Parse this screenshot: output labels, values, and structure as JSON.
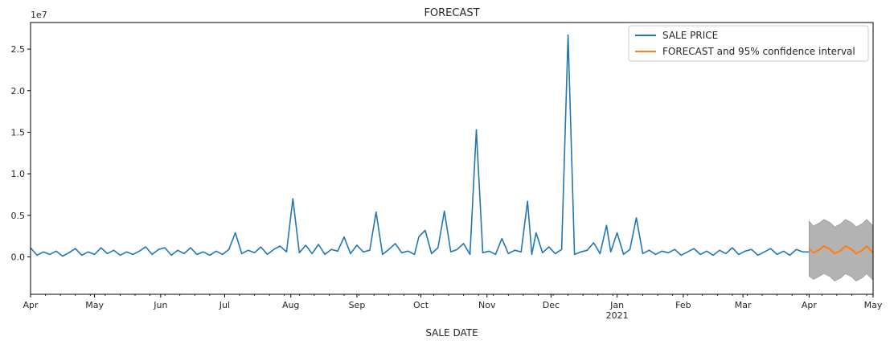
{
  "chart_data": {
    "type": "line",
    "title": "FORECAST",
    "xlabel": "SALE DATE",
    "ylabel": "",
    "y_scale_label": "1e7",
    "ylim": [
      -4500000,
      28200000
    ],
    "yticks": [
      0,
      5000000,
      10000000,
      15000000,
      20000000,
      25000000
    ],
    "ytick_labels": [
      "0.0",
      "0.5",
      "1.0",
      "1.5",
      "2.0",
      "2.5"
    ],
    "xlim": [
      "2020-04-01",
      "2021-05-01"
    ],
    "xticks": [
      {
        "date": "2020-04-01",
        "label": "Apr"
      },
      {
        "date": "2020-05-01",
        "label": "May"
      },
      {
        "date": "2020-06-01",
        "label": "Jun"
      },
      {
        "date": "2020-07-01",
        "label": "Jul"
      },
      {
        "date": "2020-08-01",
        "label": "Aug"
      },
      {
        "date": "2020-09-01",
        "label": "Sep"
      },
      {
        "date": "2020-10-01",
        "label": "Oct"
      },
      {
        "date": "2020-11-01",
        "label": "Nov"
      },
      {
        "date": "2020-12-01",
        "label": "Dec"
      },
      {
        "date": "2021-01-01",
        "label": "Jan",
        "sublabel": "2021"
      },
      {
        "date": "2021-02-01",
        "label": "Feb"
      },
      {
        "date": "2021-03-01",
        "label": "Mar"
      },
      {
        "date": "2021-04-01",
        "label": "Apr"
      },
      {
        "date": "2021-05-01",
        "label": "May"
      }
    ],
    "legend_position": "top-right",
    "series": [
      {
        "name": "SALE PRICE",
        "color": "#1f77b4",
        "points": [
          [
            "2020-04-01",
            1100000
          ],
          [
            "2020-04-04",
            200000
          ],
          [
            "2020-04-07",
            600000
          ],
          [
            "2020-04-10",
            300000
          ],
          [
            "2020-04-13",
            700000
          ],
          [
            "2020-04-16",
            100000
          ],
          [
            "2020-04-19",
            500000
          ],
          [
            "2020-04-22",
            1000000
          ],
          [
            "2020-04-25",
            200000
          ],
          [
            "2020-04-28",
            600000
          ],
          [
            "2020-05-01",
            300000
          ],
          [
            "2020-05-04",
            1100000
          ],
          [
            "2020-05-07",
            400000
          ],
          [
            "2020-05-10",
            800000
          ],
          [
            "2020-05-13",
            200000
          ],
          [
            "2020-05-16",
            600000
          ],
          [
            "2020-05-19",
            300000
          ],
          [
            "2020-05-22",
            700000
          ],
          [
            "2020-05-25",
            1200000
          ],
          [
            "2020-05-28",
            300000
          ],
          [
            "2020-05-31",
            900000
          ],
          [
            "2020-06-03",
            1100000
          ],
          [
            "2020-06-06",
            200000
          ],
          [
            "2020-06-09",
            800000
          ],
          [
            "2020-06-12",
            400000
          ],
          [
            "2020-06-15",
            1100000
          ],
          [
            "2020-06-18",
            300000
          ],
          [
            "2020-06-21",
            600000
          ],
          [
            "2020-06-24",
            200000
          ],
          [
            "2020-06-27",
            700000
          ],
          [
            "2020-06-30",
            300000
          ],
          [
            "2020-07-03",
            900000
          ],
          [
            "2020-07-06",
            2900000
          ],
          [
            "2020-07-09",
            400000
          ],
          [
            "2020-07-12",
            800000
          ],
          [
            "2020-07-15",
            500000
          ],
          [
            "2020-07-18",
            1200000
          ],
          [
            "2020-07-21",
            300000
          ],
          [
            "2020-07-24",
            900000
          ],
          [
            "2020-07-27",
            1300000
          ],
          [
            "2020-07-30",
            600000
          ],
          [
            "2020-08-02",
            7000000
          ],
          [
            "2020-08-05",
            500000
          ],
          [
            "2020-08-08",
            1400000
          ],
          [
            "2020-08-11",
            400000
          ],
          [
            "2020-08-14",
            1500000
          ],
          [
            "2020-08-17",
            300000
          ],
          [
            "2020-08-20",
            900000
          ],
          [
            "2020-08-23",
            700000
          ],
          [
            "2020-08-26",
            2400000
          ],
          [
            "2020-08-29",
            400000
          ],
          [
            "2020-09-01",
            1400000
          ],
          [
            "2020-09-04",
            600000
          ],
          [
            "2020-09-07",
            800000
          ],
          [
            "2020-09-10",
            5400000
          ],
          [
            "2020-09-13",
            300000
          ],
          [
            "2020-09-16",
            900000
          ],
          [
            "2020-09-19",
            1600000
          ],
          [
            "2020-09-22",
            500000
          ],
          [
            "2020-09-25",
            700000
          ],
          [
            "2020-09-28",
            300000
          ],
          [
            "2020-09-30",
            2400000
          ],
          [
            "2020-10-03",
            3200000
          ],
          [
            "2020-10-06",
            400000
          ],
          [
            "2020-10-09",
            1100000
          ],
          [
            "2020-10-12",
            5500000
          ],
          [
            "2020-10-15",
            600000
          ],
          [
            "2020-10-18",
            900000
          ],
          [
            "2020-10-21",
            1600000
          ],
          [
            "2020-10-24",
            300000
          ],
          [
            "2020-10-27",
            15300000
          ],
          [
            "2020-10-30",
            500000
          ],
          [
            "2020-11-02",
            700000
          ],
          [
            "2020-11-05",
            300000
          ],
          [
            "2020-11-08",
            2200000
          ],
          [
            "2020-11-11",
            400000
          ],
          [
            "2020-11-14",
            800000
          ],
          [
            "2020-11-17",
            600000
          ],
          [
            "2020-11-20",
            6700000
          ],
          [
            "2020-11-22",
            300000
          ],
          [
            "2020-11-24",
            2900000
          ],
          [
            "2020-11-27",
            500000
          ],
          [
            "2020-11-30",
            1200000
          ],
          [
            "2020-12-03",
            400000
          ],
          [
            "2020-12-06",
            900000
          ],
          [
            "2020-12-09",
            26700000
          ],
          [
            "2020-12-12",
            300000
          ],
          [
            "2020-12-15",
            600000
          ],
          [
            "2020-12-18",
            800000
          ],
          [
            "2020-12-21",
            1700000
          ],
          [
            "2020-12-24",
            400000
          ],
          [
            "2020-12-27",
            3800000
          ],
          [
            "2020-12-29",
            600000
          ],
          [
            "2021-01-01",
            2900000
          ],
          [
            "2021-01-04",
            300000
          ],
          [
            "2021-01-07",
            900000
          ],
          [
            "2021-01-10",
            4700000
          ],
          [
            "2021-01-13",
            400000
          ],
          [
            "2021-01-16",
            800000
          ],
          [
            "2021-01-19",
            300000
          ],
          [
            "2021-01-22",
            700000
          ],
          [
            "2021-01-25",
            500000
          ],
          [
            "2021-01-28",
            900000
          ],
          [
            "2021-01-31",
            200000
          ],
          [
            "2021-02-03",
            600000
          ],
          [
            "2021-02-06",
            1000000
          ],
          [
            "2021-02-09",
            300000
          ],
          [
            "2021-02-12",
            700000
          ],
          [
            "2021-02-15",
            200000
          ],
          [
            "2021-02-18",
            800000
          ],
          [
            "2021-02-21",
            400000
          ],
          [
            "2021-02-24",
            1100000
          ],
          [
            "2021-02-27",
            300000
          ],
          [
            "2021-03-02",
            700000
          ],
          [
            "2021-03-05",
            900000
          ],
          [
            "2021-03-08",
            200000
          ],
          [
            "2021-03-11",
            600000
          ],
          [
            "2021-03-14",
            1000000
          ],
          [
            "2021-03-17",
            300000
          ],
          [
            "2021-03-20",
            700000
          ],
          [
            "2021-03-23",
            200000
          ],
          [
            "2021-03-26",
            900000
          ],
          [
            "2021-03-29",
            600000
          ],
          [
            "2021-04-01",
            600000
          ]
        ]
      },
      {
        "name": "FORECAST and 95% confidence interval",
        "color": "#ff7f0e",
        "band_color": "#b3b3b3",
        "points": [
          [
            "2021-04-01",
            1000000,
            -2300000,
            4300000
          ],
          [
            "2021-04-03",
            500000,
            -2700000,
            3700000
          ],
          [
            "2021-04-06",
            900000,
            -2300000,
            4100000
          ],
          [
            "2021-04-08",
            1300000,
            -2000000,
            4500000
          ],
          [
            "2021-04-11",
            900000,
            -2400000,
            4100000
          ],
          [
            "2021-04-13",
            400000,
            -2900000,
            3600000
          ],
          [
            "2021-04-16",
            800000,
            -2500000,
            4000000
          ],
          [
            "2021-04-18",
            1300000,
            -2000000,
            4500000
          ],
          [
            "2021-04-21",
            900000,
            -2400000,
            4100000
          ],
          [
            "2021-04-23",
            400000,
            -2900000,
            3600000
          ],
          [
            "2021-04-26",
            800000,
            -2500000,
            4000000
          ],
          [
            "2021-04-28",
            1300000,
            -2000000,
            4500000
          ],
          [
            "2021-05-01",
            500000,
            -2800000,
            3700000
          ]
        ]
      }
    ]
  }
}
